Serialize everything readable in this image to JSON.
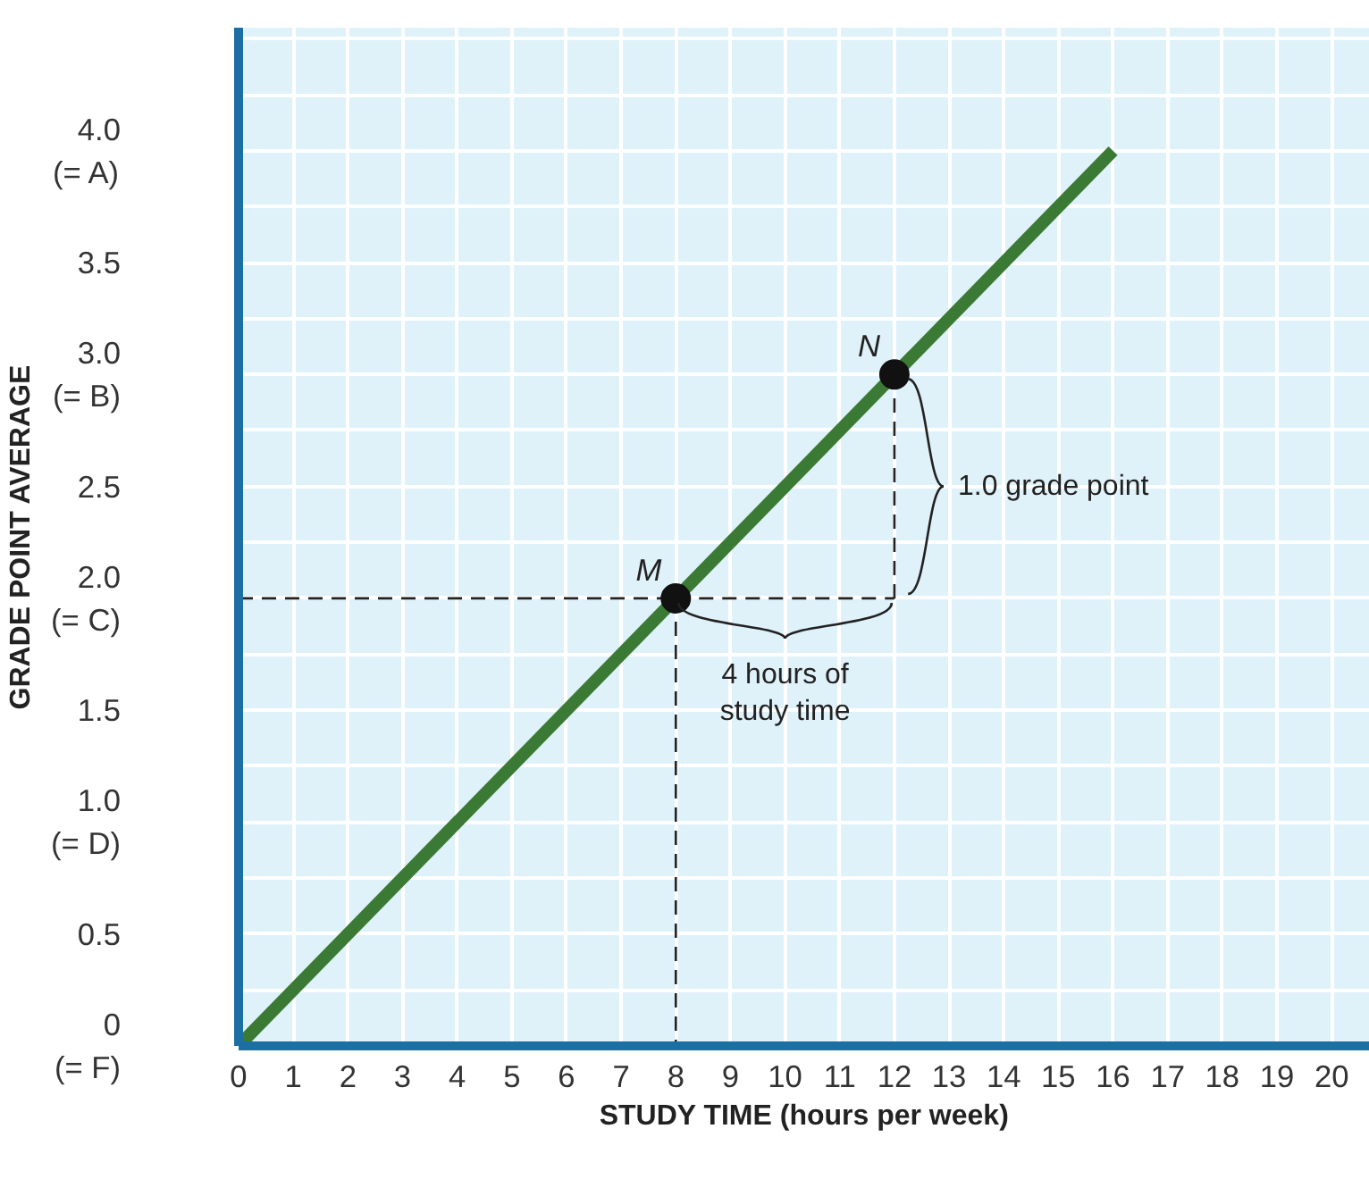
{
  "chart_data": {
    "type": "line",
    "xlabel": "STUDY TIME (hours per week)",
    "ylabel": "GRADE POINT AVERAGE",
    "xlim": [
      0,
      20.7
    ],
    "ylim": [
      0,
      4.55
    ],
    "xticks": [
      0,
      1,
      2,
      3,
      4,
      5,
      6,
      7,
      8,
      9,
      10,
      11,
      12,
      13,
      14,
      15,
      16,
      17,
      18,
      19,
      20
    ],
    "yticks": [
      {
        "value": 0,
        "label": "0\n(= F)"
      },
      0.5,
      {
        "value": 1,
        "label": "1.0\n(= D)"
      },
      1.5,
      {
        "value": 2,
        "label": "2.0\n(= C)"
      },
      2.5,
      {
        "value": 3,
        "label": "3.0\n(= B)"
      },
      3.5,
      {
        "value": 4,
        "label": "4.0\n(= A)"
      }
    ],
    "grid": true,
    "series": [
      {
        "color": "#3b7a34",
        "x": [
          0,
          16
        ],
        "values": [
          0,
          4
        ]
      },
      {
        "type": "scatter",
        "color": "#111111",
        "x": [
          8,
          12
        ],
        "values": [
          2,
          3
        ]
      }
    ],
    "annotations": [
      "M",
      "N",
      {
        "text": "4 hours of\nstudy time",
        "x": 8,
        "y": 2
      },
      {
        "text": "1.0 grade point",
        "x": 12,
        "y": 3
      }
    ]
  }
}
